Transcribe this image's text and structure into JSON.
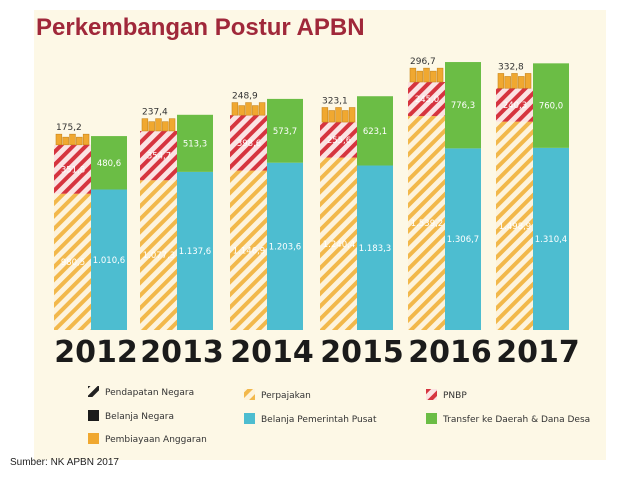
{
  "title": "Perkembangan Postur APBN",
  "source": "Sumber: NK APBN 2017",
  "colors": {
    "perpajakan": "#f2b84b",
    "pnbp": "#d6343f",
    "belanja_pusat": "#4dbdd0",
    "transfer": "#6bbd45",
    "pembiayaan": "#f0a830",
    "panel_bg": "#fdf8e6",
    "title": "#a0283a"
  },
  "chart_data": {
    "type": "bar",
    "categories": [
      "2012",
      "2013",
      "2014",
      "2015",
      "2016",
      "2017"
    ],
    "series": [
      {
        "name": "Perpajakan",
        "values": [
          "980,5",
          "1.077,3",
          "1.146,9",
          "1.240,4",
          "1.539,2",
          "1.498,9"
        ]
      },
      {
        "name": "PNBP",
        "values": [
          "351,8",
          "354,7",
          "398,6",
          "255,6",
          "245,0",
          "240,3"
        ]
      },
      {
        "name": "Pembiayaan Anggaran",
        "values": [
          "175,2",
          "237,4",
          "248,9",
          "323,1",
          "296,7",
          "332,8"
        ]
      },
      {
        "name": "Belanja Pemerintah Pusat",
        "values": [
          "1.010,6",
          "1.137,6",
          "1.203,6",
          "1.183,3",
          "1.306,7",
          "1.310,4"
        ]
      },
      {
        "name": "Transfer ke Daerah & Dana Desa",
        "values": [
          "480,6",
          "513,3",
          "573,7",
          "623,1",
          "776,3",
          "760,0"
        ]
      }
    ],
    "legend": [
      {
        "key": "pendapatan",
        "label": "Pendapatan Negara"
      },
      {
        "key": "perpajakan",
        "label": "Perpajakan"
      },
      {
        "key": "pnbp",
        "label": "PNBP"
      },
      {
        "key": "belanja",
        "label": "Belanja Negara"
      },
      {
        "key": "belanja_pusat",
        "label": "Belanja Pemerintah Pusat"
      },
      {
        "key": "transfer",
        "label": "Transfer ke Daerah & Dana Desa"
      },
      {
        "key": "pembiayaan",
        "label": "Pembiayaan Anggaran"
      }
    ],
    "legend_position": "bottom"
  }
}
